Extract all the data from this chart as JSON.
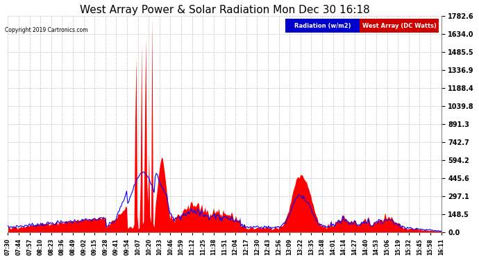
{
  "title": "West Array Power & Solar Radiation Mon Dec 30 16:18",
  "copyright": "Copyright 2019 Cartronics.com",
  "legend_labels": [
    "Radiation (w/m2)",
    "West Array (DC Watts)"
  ],
  "legend_colors": [
    "#0000cc",
    "#cc0000"
  ],
  "yticks": [
    0.0,
    148.5,
    297.1,
    445.6,
    594.2,
    742.7,
    891.3,
    1039.8,
    1188.4,
    1336.9,
    1485.5,
    1634.0,
    1782.6
  ],
  "ylim": [
    0,
    1782.6
  ],
  "background_color": "#ffffff",
  "fill_color": "#ff0000",
  "line_color": "#0000ff",
  "grid_color": "#aaaaaa",
  "title_fontsize": 11,
  "x_labels": [
    "07:30",
    "07:44",
    "07:57",
    "08:10",
    "08:23",
    "08:36",
    "08:49",
    "09:02",
    "09:15",
    "09:28",
    "09:41",
    "09:54",
    "10:07",
    "10:20",
    "10:33",
    "10:46",
    "10:59",
    "11:12",
    "11:25",
    "11:38",
    "11:51",
    "12:04",
    "12:17",
    "12:30",
    "12:43",
    "12:56",
    "13:09",
    "13:22",
    "13:35",
    "13:48",
    "14:01",
    "14:14",
    "14:27",
    "14:40",
    "14:53",
    "15:06",
    "15:19",
    "15:32",
    "15:45",
    "15:58",
    "16:11"
  ]
}
